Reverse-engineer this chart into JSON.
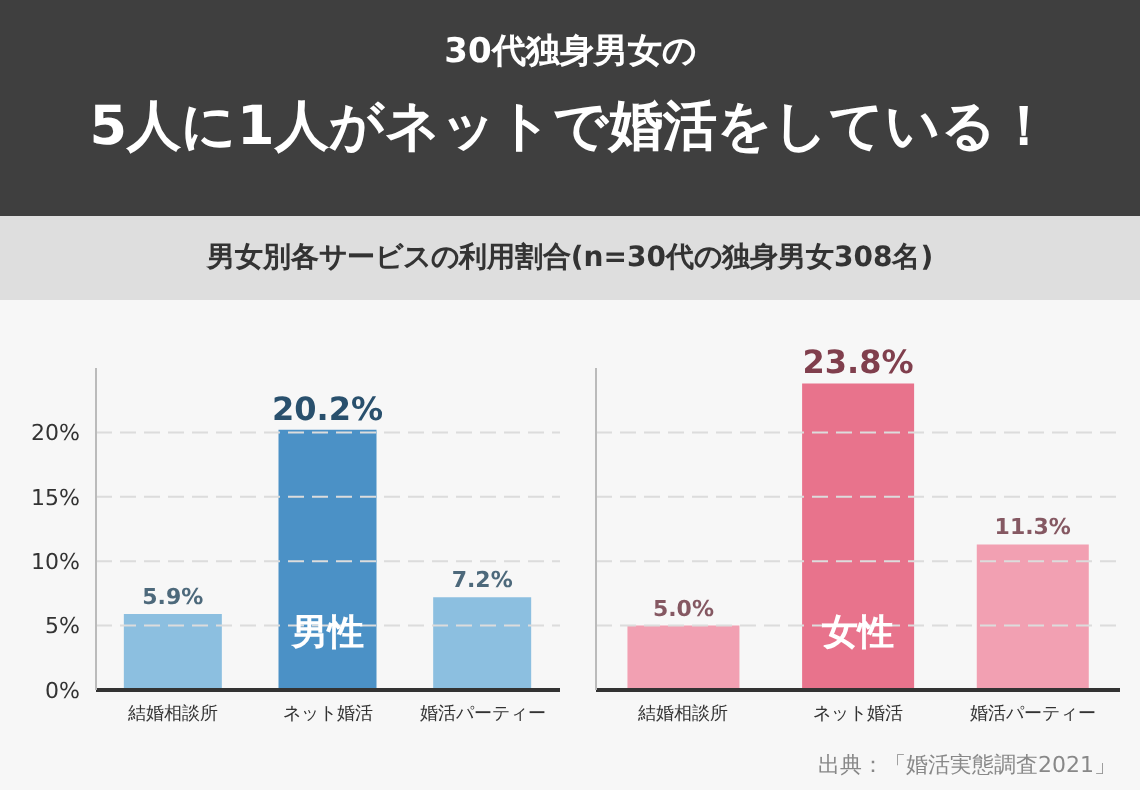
{
  "chart_data": [
    {
      "type": "bar",
      "title": "30代独身男女の\n5人に1人がネットで婚活をしている！",
      "subtitle": "男女別各サービスの利用割合(n=30代の独身男女308名)",
      "categories": [
        "結婚相談所",
        "ネット婚活",
        "婚活パーティー"
      ],
      "values": [
        5.9,
        20.2,
        7.2
      ],
      "colors": [
        "#8cbfe0",
        "#4b91c6",
        "#8cbfe0"
      ],
      "value_labels": [
        "5.9%",
        "20.2%",
        "7.2%"
      ],
      "ylim": [
        0,
        25
      ],
      "yticks": [
        {
          "value": 0,
          "label": "0%"
        },
        {
          "value": 5,
          "label": "5%"
        },
        {
          "value": 10,
          "label": "10%"
        },
        {
          "value": 15,
          "label": "15%"
        },
        {
          "value": 20,
          "label": "20%"
        }
      ],
      "grid": "y",
      "annotations": [
        "男性"
      ]
    },
    {
      "type": "bar",
      "categories": [
        "結婚相談所",
        "ネット婚活",
        "婚活パーティー"
      ],
      "values": [
        5.0,
        23.8,
        11.3
      ],
      "colors": [
        "#f2a0b2",
        "#e8738c",
        "#f2a0b2"
      ],
      "value_labels": [
        "5.0%",
        "23.8%",
        "11.3%"
      ],
      "ylim": [
        0,
        25
      ],
      "yticks": [
        0,
        5,
        10,
        15,
        20
      ],
      "grid": "y",
      "tick_labels": "x",
      "annotations": [
        "女性",
        "出典：「婚活実態調査2021」"
      ]
    }
  ]
}
